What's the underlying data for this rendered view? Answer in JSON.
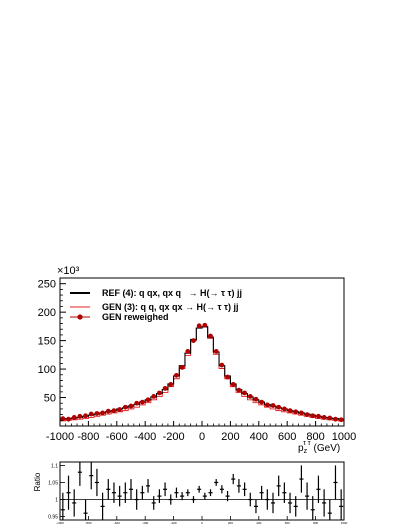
{
  "chart_data": [
    {
      "type": "line",
      "title": "",
      "y_multiplier": "×10³",
      "xlabel_main": "p",
      "xlabel_sub": "z",
      "xlabel_sup": "τ τ",
      "xlabel_unit": "(GeV)",
      "xlim": [
        -1000,
        1000
      ],
      "ylim": [
        0,
        260
      ],
      "x_ticks": [
        -1000,
        -800,
        -600,
        -400,
        -200,
        0,
        200,
        400,
        600,
        800,
        1000
      ],
      "y_ticks": [
        50,
        100,
        150,
        200,
        250
      ],
      "x_tick_labels": [
        "-1000",
        "-800",
        "-600",
        "-400",
        "-200",
        "0",
        "200",
        "400",
        "600",
        "800",
        "1000"
      ],
      "y_tick_labels": [
        "50",
        "100",
        "150",
        "200",
        "250"
      ],
      "bin_edges": [
        -1000,
        -960,
        -920,
        -880,
        -840,
        -800,
        -760,
        -720,
        -680,
        -640,
        -600,
        -560,
        -520,
        -480,
        -440,
        -400,
        -360,
        -320,
        -280,
        -240,
        -200,
        -160,
        -120,
        -80,
        -40,
        0,
        40,
        80,
        120,
        160,
        200,
        240,
        280,
        320,
        360,
        400,
        440,
        480,
        520,
        560,
        600,
        640,
        680,
        720,
        760,
        800,
        840,
        880,
        920,
        960,
        1000
      ],
      "bin_centers": [
        -980,
        -940,
        -900,
        -860,
        -820,
        -780,
        -740,
        -700,
        -660,
        -620,
        -580,
        -540,
        -500,
        -460,
        -420,
        -380,
        -340,
        -300,
        -260,
        -220,
        -180,
        -140,
        -100,
        -60,
        -20,
        20,
        60,
        100,
        140,
        180,
        220,
        260,
        300,
        340,
        380,
        420,
        460,
        500,
        540,
        580,
        620,
        660,
        700,
        740,
        780,
        820,
        860,
        900,
        940,
        980
      ],
      "legend_position": "top-left",
      "series": [
        {
          "name": "REF (4): q qx, qx q   → H(→ τ τ) jj",
          "style": "step",
          "color": "#000000",
          "values": [
            12,
            13,
            14,
            15,
            17,
            19,
            21,
            23,
            25,
            27,
            30,
            32,
            35,
            38,
            42,
            46,
            51,
            57,
            64,
            74,
            88,
            106,
            128,
            152,
            172,
            174,
            156,
            130,
            106,
            88,
            74,
            64,
            57,
            51,
            46,
            42,
            38,
            35,
            32,
            30,
            27,
            25,
            23,
            21,
            19,
            17,
            15,
            14,
            13,
            12
          ]
        },
        {
          "name": "GEN (3): q q, qx qx → H(→ τ τ) jj",
          "style": "step",
          "color": "#e02020",
          "values": [
            9,
            10,
            11,
            12,
            13,
            15,
            17,
            19,
            21,
            23,
            25,
            27,
            30,
            33,
            37,
            41,
            46,
            52,
            59,
            69,
            83,
            101,
            124,
            150,
            172,
            175,
            154,
            126,
            101,
            83,
            69,
            59,
            52,
            46,
            41,
            37,
            33,
            30,
            27,
            25,
            23,
            21,
            19,
            17,
            15,
            13,
            12,
            11,
            10,
            9
          ]
        },
        {
          "name": "GEN reweighed",
          "style": "markers",
          "color": "#b00000",
          "values": [
            13,
            12,
            15,
            17,
            18,
            21,
            22,
            23,
            26,
            27,
            29,
            33,
            35,
            40,
            42,
            46,
            52,
            58,
            66,
            73,
            89,
            103,
            131,
            150,
            176,
            177,
            158,
            131,
            107,
            86,
            73,
            63,
            58,
            52,
            47,
            42,
            37,
            36,
            33,
            30,
            27,
            25,
            23,
            20,
            18,
            17,
            15,
            14,
            12,
            11
          ]
        }
      ]
    },
    {
      "type": "scatter",
      "ylabel": "Ratio",
      "xlim": [
        -1000,
        1000
      ],
      "ylim": [
        0.94,
        1.11
      ],
      "y_ticks": [
        0.95,
        1.0,
        1.05,
        1.1
      ],
      "y_tick_labels": [
        "0.95",
        "1",
        "1.05",
        "1.1"
      ],
      "x_tick_labels": [
        "-1000",
        "-800",
        "-600",
        "-400",
        "-200",
        "0",
        "200",
        "400",
        "600",
        "800",
        "1000"
      ],
      "reference_line": 1.0,
      "values": [
        0.97,
        1.02,
        0.99,
        1.08,
        0.96,
        1.07,
        1.05,
        0.98,
        1.03,
        1.02,
        1.01,
        1.02,
        1.03,
        1.0,
        1.02,
        1.04,
        0.99,
        1.01,
        1.03,
        1.0,
        1.02,
        1.01,
        1.02,
        1.0,
        1.03,
        1.01,
        1.02,
        1.05,
        1.03,
        1.01,
        1.06,
        1.04,
        1.03,
        1.0,
        0.98,
        1.02,
        1.0,
        0.99,
        1.04,
        1.02,
        0.99,
        0.98,
        1.06,
        1.01,
        0.97,
        1.03,
        0.99,
        0.96,
        1.05,
        0.98
      ],
      "errors": [
        0.05,
        0.05,
        0.04,
        0.04,
        0.04,
        0.04,
        0.04,
        0.04,
        0.03,
        0.03,
        0.03,
        0.03,
        0.03,
        0.03,
        0.02,
        0.02,
        0.02,
        0.02,
        0.02,
        0.015,
        0.015,
        0.012,
        0.01,
        0.01,
        0.01,
        0.01,
        0.01,
        0.01,
        0.012,
        0.015,
        0.015,
        0.02,
        0.02,
        0.02,
        0.02,
        0.02,
        0.03,
        0.03,
        0.03,
        0.03,
        0.03,
        0.03,
        0.04,
        0.04,
        0.04,
        0.04,
        0.04,
        0.04,
        0.05,
        0.05
      ]
    }
  ]
}
